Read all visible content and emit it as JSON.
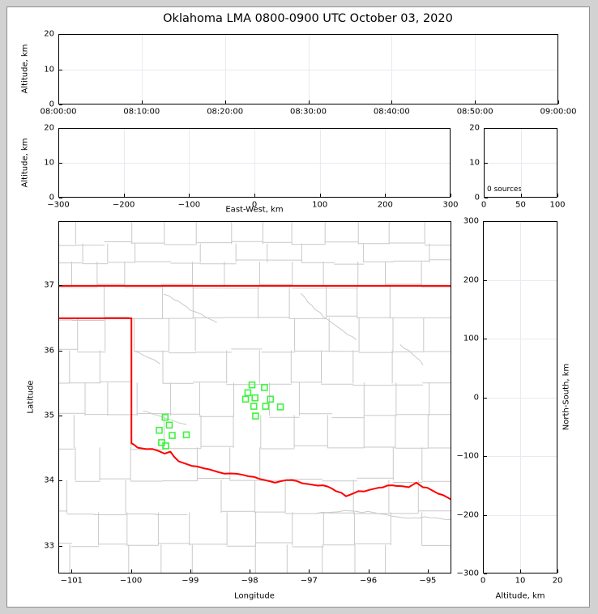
{
  "title": "Oklahoma LMA 0800-0900 UTC October 03, 2020",
  "colors": {
    "state_border": "#ff0000",
    "county_line": "#c9c9c9",
    "river": "#c9c9c9",
    "station_marker": "#3df53d",
    "gridline": "#e9e9f1",
    "frame": "#000000",
    "canvas": "#ffffff",
    "outer_background": "#d2d2d2"
  },
  "panels": {
    "time_height": {
      "ylabel": "Altitude, km",
      "yticks": [
        "20",
        "10",
        "0"
      ],
      "xticks": [
        "08:00:00",
        "08:10:00",
        "08:20:00",
        "08:30:00",
        "08:40:00",
        "08:50:00",
        "09:00:00"
      ]
    },
    "ew_height": {
      "ylabel": "Altitude, km",
      "xlabel": "East-West, km",
      "yticks": [
        "20",
        "10",
        "0"
      ],
      "xticks": [
        "−300",
        "−200",
        "−100",
        "0",
        "100",
        "200",
        "300"
      ]
    },
    "source_histogram": {
      "yticks": [
        "20",
        "10",
        "0"
      ],
      "xticks": [
        "0",
        "50",
        "100"
      ],
      "annotation": "0 sources"
    },
    "plan_view": {
      "ylabel": "Latitude",
      "xlabel": "Longitude",
      "yticks": [
        "37",
        "36",
        "35",
        "34",
        "33"
      ],
      "xticks": [
        "−101",
        "−100",
        "−99",
        "−98",
        "−97",
        "−96",
        "−95"
      ]
    },
    "ns_height": {
      "ylabel": "North-South, km",
      "xlabel": "Altitude, km",
      "yticks": [
        "300",
        "200",
        "100",
        "0",
        "−100",
        "−200",
        "−300"
      ],
      "xticks": [
        "0",
        "10",
        "20"
      ]
    }
  },
  "chart_data": [
    {
      "type": "scatter",
      "panel": "time_height",
      "title": "Oklahoma LMA 0800-0900 UTC October 03, 2020",
      "xlabel": "",
      "ylabel": "Altitude, km",
      "x_ticks": [
        "08:00:00",
        "08:10:00",
        "08:20:00",
        "08:30:00",
        "08:40:00",
        "08:50:00",
        "09:00:00"
      ],
      "ylim": [
        0,
        20
      ],
      "grid": true,
      "points": []
    },
    {
      "type": "scatter",
      "panel": "ew_height",
      "xlabel": "East-West, km",
      "ylabel": "Altitude, km",
      "xlim": [
        -300,
        300
      ],
      "ylim": [
        0,
        20
      ],
      "grid": true,
      "points": []
    },
    {
      "type": "histogram",
      "panel": "source_histogram",
      "xlim": [
        0,
        100
      ],
      "ylim": [
        0,
        20
      ],
      "annotation": "0 sources",
      "values": []
    },
    {
      "type": "scatter",
      "panel": "plan_view",
      "xlabel": "Longitude",
      "ylabel": "Latitude",
      "xlim": [
        -101.22,
        -94.6
      ],
      "ylim": [
        32.57,
        37.99
      ],
      "grid": false,
      "series": [
        {
          "name": "lma-stations",
          "marker": "open-green-square",
          "points": [
            [
              -99.43,
              34.97
            ],
            [
              -99.36,
              34.85
            ],
            [
              -99.53,
              34.77
            ],
            [
              -99.31,
              34.69
            ],
            [
              -99.07,
              34.7
            ],
            [
              -99.49,
              34.58
            ],
            [
              -99.42,
              34.53
            ],
            [
              -97.96,
              35.47
            ],
            [
              -97.75,
              35.43
            ],
            [
              -98.03,
              35.35
            ],
            [
              -97.91,
              35.27
            ],
            [
              -98.07,
              35.25
            ],
            [
              -97.65,
              35.25
            ],
            [
              -97.93,
              35.14
            ],
            [
              -97.73,
              35.14
            ],
            [
              -97.48,
              35.13
            ],
            [
              -97.9,
              34.99
            ]
          ]
        }
      ]
    },
    {
      "type": "scatter",
      "panel": "ns_height",
      "xlabel": "Altitude, km",
      "ylabel": "North-South, km",
      "xlim": [
        0,
        20
      ],
      "ylim": [
        -300,
        300
      ],
      "grid": true,
      "points": []
    }
  ],
  "map": {
    "bounds": {
      "lon_min": -101.2225,
      "lon_max": -94.6025,
      "lat_min": 32.5705,
      "lat_max": 37.9875
    },
    "state_border": {
      "north": [
        [
          -101.23,
          37.0
        ],
        [
          -94.59,
          37.0
        ]
      ],
      "panhandle_south": [
        [
          -101.23,
          36.5
        ],
        [
          -100.0,
          36.5
        ]
      ],
      "panhandle_east": [
        [
          -100.0,
          36.5
        ],
        [
          -100.0,
          34.57
        ]
      ],
      "red_river": [
        [
          -100.0,
          34.57
        ],
        [
          -99.96,
          34.55
        ],
        [
          -99.89,
          34.5
        ],
        [
          -99.75,
          34.48
        ],
        [
          -99.54,
          34.45
        ],
        [
          -99.44,
          34.41
        ],
        [
          -99.34,
          34.44
        ],
        [
          -99.2,
          34.29
        ],
        [
          -99.07,
          34.25
        ],
        [
          -98.89,
          34.21
        ],
        [
          -98.66,
          34.16
        ],
        [
          -98.43,
          34.1
        ],
        [
          -98.11,
          34.08
        ],
        [
          -97.84,
          34.02
        ],
        [
          -97.57,
          33.96
        ],
        [
          -97.29,
          34.0
        ],
        [
          -97.02,
          33.94
        ],
        [
          -96.76,
          33.92
        ],
        [
          -96.54,
          33.83
        ],
        [
          -96.37,
          33.75
        ],
        [
          -96.16,
          33.83
        ],
        [
          -95.97,
          33.85
        ],
        [
          -95.83,
          33.88
        ],
        [
          -95.59,
          33.92
        ],
        [
          -95.52,
          33.91
        ],
        [
          -95.31,
          33.89
        ],
        [
          -95.18,
          33.96
        ],
        [
          -95.07,
          33.89
        ],
        [
          -94.93,
          33.85
        ],
        [
          -94.81,
          33.79
        ],
        [
          -94.73,
          33.77
        ],
        [
          -94.59,
          33.7
        ]
      ]
    },
    "rivers": [
      [
        [
          -99.45,
          36.87
        ],
        [
          -99.2,
          36.76
        ],
        [
          -99.0,
          36.62
        ],
        [
          -98.75,
          36.52
        ],
        [
          -98.56,
          36.44
        ]
      ],
      [
        [
          -99.95,
          35.99
        ],
        [
          -99.78,
          35.92
        ],
        [
          -99.62,
          35.86
        ],
        [
          -99.52,
          35.8
        ]
      ],
      [
        [
          -97.13,
          36.88
        ],
        [
          -96.95,
          36.7
        ],
        [
          -96.75,
          36.52
        ],
        [
          -96.52,
          36.37
        ],
        [
          -96.35,
          36.25
        ],
        [
          -96.2,
          36.17
        ]
      ],
      [
        [
          -95.45,
          36.09
        ],
        [
          -95.25,
          35.95
        ],
        [
          -95.12,
          35.85
        ],
        [
          -95.07,
          35.78
        ]
      ],
      [
        [
          -96.88,
          33.48
        ],
        [
          -96.4,
          33.53
        ],
        [
          -95.9,
          33.5
        ],
        [
          -95.4,
          33.42
        ],
        [
          -94.95,
          33.42
        ],
        [
          -94.61,
          33.39
        ]
      ],
      [
        [
          -99.8,
          35.07
        ],
        [
          -99.55,
          35.0
        ],
        [
          -99.3,
          34.92
        ],
        [
          -99.07,
          34.86
        ]
      ]
    ],
    "county_rows": [
      37.65,
      37.37,
      37.0,
      36.5,
      36.0,
      35.5,
      35.0,
      34.5,
      34.0,
      33.5,
      33.0
    ],
    "county_cols": [
      -100.95,
      -100.47,
      -100.0,
      -99.45,
      -98.9,
      -98.35,
      -97.8,
      -97.25,
      -96.7,
      -96.15,
      -95.6,
      -95.05
    ],
    "county_seed": 11
  }
}
